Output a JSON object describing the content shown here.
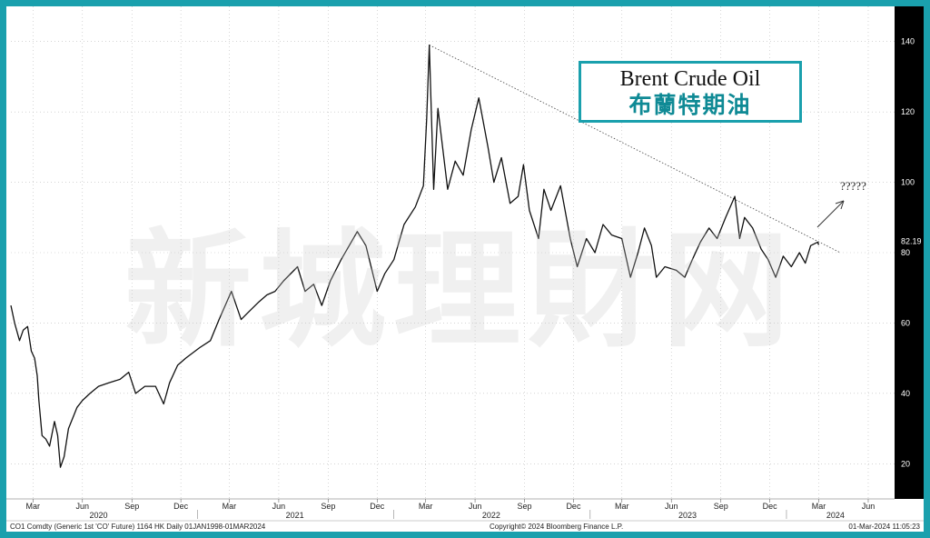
{
  "title": {
    "en": "Brent Crude Oil",
    "zh": "布蘭特期油"
  },
  "watermark": "新城理財网",
  "annotation": "?????",
  "footer": {
    "left": "CO1 Comdty (Generic 1st 'CO' Future) 1164 HK  Daily 01JAN1998-01MAR2024",
    "center": "Copyright© 2024 Bloomberg Finance L.P.",
    "right": "01-Mar-2024 11:05:23"
  },
  "chart_data": {
    "type": "line",
    "title": "Brent Crude Oil",
    "xlabel": "",
    "ylabel": "",
    "ylim": [
      10,
      150
    ],
    "xlim": [
      "2020-01-20",
      "2024-07-20"
    ],
    "yticks": [
      20,
      40,
      60,
      80,
      100,
      120,
      140
    ],
    "last_value": "82.19",
    "month_ticks": [
      {
        "label": "Mar",
        "date": "2020-03-01"
      },
      {
        "label": "Jun",
        "date": "2020-06-01"
      },
      {
        "label": "Sep",
        "date": "2020-09-01"
      },
      {
        "label": "Dec",
        "date": "2020-12-01"
      },
      {
        "label": "Mar",
        "date": "2021-03-01"
      },
      {
        "label": "Jun",
        "date": "2021-06-01"
      },
      {
        "label": "Sep",
        "date": "2021-09-01"
      },
      {
        "label": "Dec",
        "date": "2021-12-01"
      },
      {
        "label": "Mar",
        "date": "2022-03-01"
      },
      {
        "label": "Jun",
        "date": "2022-06-01"
      },
      {
        "label": "Sep",
        "date": "2022-09-01"
      },
      {
        "label": "Dec",
        "date": "2022-12-01"
      },
      {
        "label": "Mar",
        "date": "2023-03-01"
      },
      {
        "label": "Jun",
        "date": "2023-06-01"
      },
      {
        "label": "Sep",
        "date": "2023-09-01"
      },
      {
        "label": "Dec",
        "date": "2023-12-01"
      },
      {
        "label": "Mar",
        "date": "2024-03-01"
      },
      {
        "label": "Jun",
        "date": "2024-06-01"
      }
    ],
    "year_ticks": [
      {
        "label": "2020",
        "date": "2020-07-01"
      },
      {
        "label": "2021",
        "date": "2021-07-01"
      },
      {
        "label": "2022",
        "date": "2022-07-01"
      },
      {
        "label": "2023",
        "date": "2023-07-01"
      },
      {
        "label": "2024",
        "date": "2024-04-01"
      }
    ],
    "series": [
      {
        "points": [
          [
            "2020-01-20",
            65
          ],
          [
            "2020-01-27",
            60
          ],
          [
            "2020-02-05",
            55
          ],
          [
            "2020-02-12",
            58
          ],
          [
            "2020-02-20",
            59
          ],
          [
            "2020-02-27",
            52
          ],
          [
            "2020-03-04",
            50
          ],
          [
            "2020-03-09",
            45
          ],
          [
            "2020-03-12",
            38
          ],
          [
            "2020-03-18",
            28
          ],
          [
            "2020-03-25",
            27
          ],
          [
            "2020-04-01",
            25
          ],
          [
            "2020-04-10",
            32
          ],
          [
            "2020-04-16",
            28
          ],
          [
            "2020-04-21",
            19
          ],
          [
            "2020-04-28",
            22
          ],
          [
            "2020-05-06",
            30
          ],
          [
            "2020-05-14",
            33
          ],
          [
            "2020-05-22",
            36
          ],
          [
            "2020-06-01",
            38
          ],
          [
            "2020-06-15",
            40
          ],
          [
            "2020-07-01",
            42
          ],
          [
            "2020-07-20",
            43
          ],
          [
            "2020-08-10",
            44
          ],
          [
            "2020-08-26",
            46
          ],
          [
            "2020-09-08",
            40
          ],
          [
            "2020-09-25",
            42
          ],
          [
            "2020-10-15",
            42
          ],
          [
            "2020-10-30",
            37
          ],
          [
            "2020-11-10",
            43
          ],
          [
            "2020-11-25",
            48
          ],
          [
            "2020-12-10",
            50
          ],
          [
            "2021-01-05",
            53
          ],
          [
            "2021-01-25",
            55
          ],
          [
            "2021-02-10",
            61
          ],
          [
            "2021-03-05",
            69
          ],
          [
            "2021-03-23",
            61
          ],
          [
            "2021-04-05",
            63
          ],
          [
            "2021-04-25",
            66
          ],
          [
            "2021-05-10",
            68
          ],
          [
            "2021-05-25",
            69
          ],
          [
            "2021-06-10",
            72
          ],
          [
            "2021-07-06",
            76
          ],
          [
            "2021-07-20",
            69
          ],
          [
            "2021-08-05",
            71
          ],
          [
            "2021-08-20",
            65
          ],
          [
            "2021-09-05",
            72
          ],
          [
            "2021-09-25",
            78
          ],
          [
            "2021-10-10",
            82
          ],
          [
            "2021-10-25",
            86
          ],
          [
            "2021-11-10",
            82
          ],
          [
            "2021-12-01",
            69
          ],
          [
            "2021-12-15",
            74
          ],
          [
            "2022-01-01",
            78
          ],
          [
            "2022-01-20",
            88
          ],
          [
            "2022-02-10",
            93
          ],
          [
            "2022-02-25",
            99
          ],
          [
            "2022-03-03",
            118
          ],
          [
            "2022-03-08",
            139
          ],
          [
            "2022-03-16",
            98
          ],
          [
            "2022-03-24",
            121
          ],
          [
            "2022-04-11",
            98
          ],
          [
            "2022-04-25",
            106
          ],
          [
            "2022-05-10",
            102
          ],
          [
            "2022-05-25",
            115
          ],
          [
            "2022-06-08",
            124
          ],
          [
            "2022-06-25",
            110
          ],
          [
            "2022-07-06",
            100
          ],
          [
            "2022-07-20",
            107
          ],
          [
            "2022-08-05",
            94
          ],
          [
            "2022-08-20",
            96
          ],
          [
            "2022-08-30",
            105
          ],
          [
            "2022-09-10",
            92
          ],
          [
            "2022-09-27",
            84
          ],
          [
            "2022-10-07",
            98
          ],
          [
            "2022-10-20",
            92
          ],
          [
            "2022-11-07",
            99
          ],
          [
            "2022-11-25",
            84
          ],
          [
            "2022-12-08",
            76
          ],
          [
            "2022-12-25",
            84
          ],
          [
            "2023-01-10",
            80
          ],
          [
            "2023-01-25",
            88
          ],
          [
            "2023-02-10",
            85
          ],
          [
            "2023-03-01",
            84
          ],
          [
            "2023-03-17",
            73
          ],
          [
            "2023-03-31",
            80
          ],
          [
            "2023-04-12",
            87
          ],
          [
            "2023-04-25",
            82
          ],
          [
            "2023-05-04",
            73
          ],
          [
            "2023-05-20",
            76
          ],
          [
            "2023-06-10",
            75
          ],
          [
            "2023-06-26",
            73
          ],
          [
            "2023-07-10",
            78
          ],
          [
            "2023-07-25",
            83
          ],
          [
            "2023-08-10",
            87
          ],
          [
            "2023-08-25",
            84
          ],
          [
            "2023-09-10",
            90
          ],
          [
            "2023-09-27",
            96
          ],
          [
            "2023-10-06",
            84
          ],
          [
            "2023-10-15",
            90
          ],
          [
            "2023-10-30",
            87
          ],
          [
            "2023-11-15",
            81
          ],
          [
            "2023-11-28",
            78
          ],
          [
            "2023-12-12",
            73
          ],
          [
            "2023-12-26",
            79
          ],
          [
            "2024-01-10",
            76
          ],
          [
            "2024-01-25",
            80
          ],
          [
            "2024-02-05",
            77
          ],
          [
            "2024-02-15",
            82
          ],
          [
            "2024-02-28",
            83
          ],
          [
            "2024-03-01",
            82.19
          ]
        ]
      }
    ],
    "trendline": [
      [
        "2022-03-08",
        139
      ],
      [
        "2024-04-10",
        80
      ]
    ]
  }
}
